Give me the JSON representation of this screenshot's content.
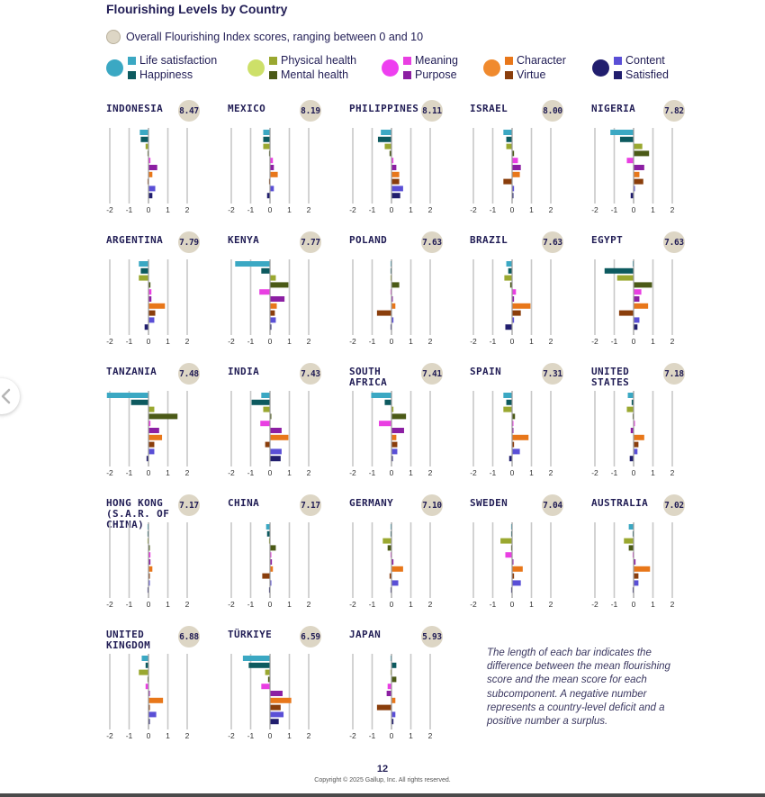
{
  "title": "Flourishing Levels by Country",
  "overall_note": "Overall Flourishing Index scores, ranging between 0 and 10",
  "legend": [
    {
      "labels": [
        "Life satisfaction",
        "Happiness"
      ],
      "big_color": "#3ba8c3",
      "colors": [
        "#3ba8c3",
        "#0d5a5f"
      ]
    },
    {
      "labels": [
        "Physical health",
        "Mental health"
      ],
      "big_color": "#cde069",
      "colors": [
        "#9aa830",
        "#4b5a17"
      ]
    },
    {
      "labels": [
        "Meaning",
        "Purpose"
      ],
      "big_color": "#ee3ff0",
      "colors": [
        "#e93fe2",
        "#8c1fa3"
      ]
    },
    {
      "labels": [
        "Character",
        "Virtue"
      ],
      "big_color": "#f08a2e",
      "colors": [
        "#e8771a",
        "#8a3e0c"
      ]
    },
    {
      "labels": [
        "Content",
        "Satisfied"
      ],
      "big_color": "#211e6e",
      "colors": [
        "#5a4fd6",
        "#211e6e"
      ]
    }
  ],
  "axis_ticks": [
    "-2",
    "-1",
    "0",
    "1",
    "2"
  ],
  "chart_data": {
    "type": "bar",
    "title": "Flourishing Levels by Country",
    "orientation": "horizontal",
    "xlim": [
      -2,
      2
    ],
    "series": [
      "Life satisfaction",
      "Happiness",
      "Physical health",
      "Mental health",
      "Meaning",
      "Purpose",
      "Character",
      "Virtue",
      "Content",
      "Satisfied"
    ],
    "colors": [
      "#3ba8c3",
      "#0d5a5f",
      "#9aa830",
      "#4b5a17",
      "#e93fe2",
      "#8c1fa3",
      "#e8771a",
      "#8a3e0c",
      "#5a4fd6",
      "#211e6e"
    ],
    "countries": [
      {
        "name": "INDONESIA",
        "score": "8.47",
        "values": [
          -0.45,
          -0.4,
          -0.15,
          -0.05,
          0.1,
          0.45,
          0.2,
          -0.05,
          0.35,
          0.2
        ]
      },
      {
        "name": "MEXICO",
        "score": "8.19",
        "values": [
          -0.35,
          -0.35,
          -0.35,
          -0.05,
          0.15,
          0.2,
          0.4,
          -0.05,
          0.2,
          -0.15
        ]
      },
      {
        "name": "PHILIPPINES",
        "score": "8.11",
        "values": [
          -0.55,
          -0.7,
          -0.35,
          -0.1,
          0.1,
          0.25,
          0.4,
          0.4,
          0.6,
          0.45
        ]
      },
      {
        "name": "ISRAEL",
        "score": "8.00",
        "values": [
          -0.45,
          -0.3,
          -0.3,
          0.1,
          0.3,
          0.45,
          0.4,
          -0.45,
          0.1,
          0.05
        ]
      },
      {
        "name": "NIGERIA",
        "score": "7.82",
        "values": [
          -1.2,
          -0.7,
          0.45,
          0.8,
          -0.35,
          0.55,
          0.3,
          0.5,
          0.05,
          -0.15
        ]
      },
      {
        "name": "ARGENTINA",
        "score": "7.79",
        "values": [
          -0.5,
          -0.4,
          -0.5,
          0.1,
          0.15,
          0.15,
          0.85,
          0.35,
          0.3,
          -0.2
        ]
      },
      {
        "name": "KENYA",
        "score": "7.77",
        "values": [
          -1.8,
          -0.45,
          0.3,
          0.95,
          -0.55,
          0.75,
          0.35,
          0.25,
          0.3,
          0.05
        ]
      },
      {
        "name": "POLAND",
        "score": "7.63",
        "values": [
          -0.05,
          -0.05,
          -0.05,
          0.4,
          -0.05,
          0.05,
          0.2,
          -0.75,
          0.1,
          -0.05
        ]
      },
      {
        "name": "BRAZIL",
        "score": "7.63",
        "values": [
          -0.3,
          -0.2,
          -0.4,
          -0.1,
          0.2,
          0.1,
          0.95,
          0.45,
          0.1,
          -0.35
        ]
      },
      {
        "name": "EGYPT",
        "score": "7.63",
        "values": [
          -0.05,
          -1.5,
          -0.85,
          0.95,
          0.4,
          0.3,
          0.75,
          -0.75,
          0.3,
          0.2
        ]
      },
      {
        "name": "TANZANIA",
        "score": "7.48",
        "values": [
          -2.15,
          -0.9,
          0.3,
          1.5,
          0.1,
          0.55,
          0.7,
          0.3,
          0.3,
          -0.1
        ]
      },
      {
        "name": "INDIA",
        "score": "7.43",
        "values": [
          -0.45,
          -0.95,
          -0.35,
          0.05,
          -0.5,
          0.6,
          0.95,
          -0.25,
          0.6,
          0.55
        ]
      },
      {
        "name": "SOUTH AFRICA",
        "score": "7.41",
        "values": [
          -1.05,
          -0.35,
          0.1,
          0.75,
          -0.65,
          0.65,
          0.25,
          0.3,
          0.3,
          0.05
        ]
      },
      {
        "name": "SPAIN",
        "score": "7.31",
        "values": [
          -0.45,
          -0.3,
          -0.45,
          0.15,
          0.05,
          0.05,
          0.85,
          0.1,
          0.4,
          -0.15
        ]
      },
      {
        "name": "UNITED STATES",
        "score": "7.18",
        "values": [
          -0.3,
          -0.1,
          -0.35,
          -0.05,
          0.05,
          -0.15,
          0.55,
          0.25,
          0.2,
          -0.2
        ]
      },
      {
        "name": "HONG KONG (S.A.R. OF CHINA)",
        "score": "7.17",
        "values": [
          -0.05,
          -0.05,
          -0.05,
          0.05,
          0.1,
          0.1,
          0.2,
          0.05,
          0.05,
          -0.05
        ]
      },
      {
        "name": "CHINA",
        "score": "7.17",
        "values": [
          -0.2,
          -0.15,
          -0.05,
          0.3,
          0.05,
          0.1,
          0.15,
          -0.4,
          0.05,
          -0.05
        ]
      },
      {
        "name": "GERMANY",
        "score": "7.10",
        "values": [
          -0.05,
          -0.05,
          -0.45,
          -0.2,
          -0.05,
          0.1,
          0.6,
          -0.1,
          0.35,
          -0.05
        ]
      },
      {
        "name": "SWEDEN",
        "score": "7.04",
        "values": [
          -0.05,
          -0.05,
          -0.6,
          -0.05,
          -0.35,
          0.05,
          0.55,
          0.1,
          0.45,
          -0.05
        ]
      },
      {
        "name": "AUSTRALIA",
        "score": "7.02",
        "values": [
          -0.25,
          -0.05,
          -0.5,
          -0.25,
          -0.05,
          0.1,
          0.85,
          0.25,
          0.25,
          -0.05
        ]
      },
      {
        "name": "UNITED KINGDOM",
        "score": "6.88",
        "values": [
          -0.35,
          -0.15,
          -0.5,
          -0.05,
          -0.15,
          0.05,
          0.75,
          0.05,
          0.4,
          0.05
        ]
      },
      {
        "name": "TÜRKIYE",
        "score": "6.59",
        "values": [
          -1.4,
          -1.1,
          -0.25,
          -0.1,
          -0.45,
          0.65,
          1.1,
          0.55,
          0.7,
          0.45
        ]
      },
      {
        "name": "JAPAN",
        "score": "5.93",
        "values": [
          -0.05,
          0.25,
          -0.05,
          0.25,
          -0.2,
          -0.25,
          0.2,
          -0.75,
          0.2,
          0.1
        ]
      }
    ]
  },
  "note": "The length of each bar indicates the difference between the mean flourishing score and the mean score for each subcomponent. A negative number represents a country-level deficit and a positive number a surplus.",
  "page_number": "12",
  "copyright": "Copyright © 2025 Gallup, Inc. All rights reserved."
}
